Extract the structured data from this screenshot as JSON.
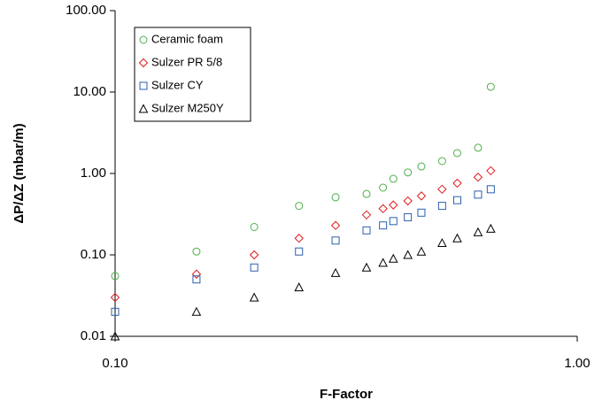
{
  "chart_data": {
    "type": "scatter",
    "x_label": "F-Factor",
    "y_label": "ΔP/ΔZ (mbar/m)",
    "x": [
      0.1,
      0.15,
      0.2,
      0.25,
      0.3,
      0.35,
      0.38,
      0.4,
      0.43,
      0.46,
      0.51,
      0.55,
      0.61,
      0.65
    ],
    "series": [
      {
        "name": "Ceramic foam",
        "color": "#4daf4a",
        "marker": "circle",
        "values": [
          0.055,
          0.11,
          0.22,
          0.4,
          0.51,
          0.56,
          0.67,
          0.86,
          1.03,
          1.22,
          1.42,
          1.78,
          2.07,
          11.6
        ]
      },
      {
        "name": "Sulzer PR 5/8",
        "color": "#e41a1c",
        "marker": "diamond",
        "values": [
          0.03,
          0.058,
          0.1,
          0.16,
          0.23,
          0.31,
          0.37,
          0.41,
          0.46,
          0.53,
          0.64,
          0.76,
          0.9,
          1.08
        ]
      },
      {
        "name": "Sulzer CY",
        "color": "#2b5fad",
        "marker": "square",
        "values": [
          0.02,
          0.05,
          0.07,
          0.11,
          0.15,
          0.2,
          0.23,
          0.26,
          0.29,
          0.33,
          0.4,
          0.47,
          0.55,
          0.64
        ]
      },
      {
        "name": "Sulzer M250Y",
        "color": "#000000",
        "marker": "triangle",
        "values": [
          0.01,
          0.02,
          0.03,
          0.04,
          0.06,
          0.07,
          0.08,
          0.09,
          0.1,
          0.11,
          0.14,
          0.16,
          0.19,
          0.21
        ]
      }
    ],
    "xscale": "log",
    "yscale": "log",
    "xlim": [
      0.1,
      1
    ],
    "ylim": [
      0.01,
      100
    ],
    "xticks": [
      {
        "value": 0.1,
        "label": "0.10"
      },
      {
        "value": 1,
        "label": "1.00"
      }
    ],
    "yticks": [
      {
        "value": 0.01,
        "label": "0.01"
      },
      {
        "value": 0.1,
        "label": "0.10"
      },
      {
        "value": 1,
        "label": "1.00"
      },
      {
        "value": 10,
        "label": "10.00"
      },
      {
        "value": 100,
        "label": "100.00"
      }
    ],
    "legend": "upper left"
  }
}
